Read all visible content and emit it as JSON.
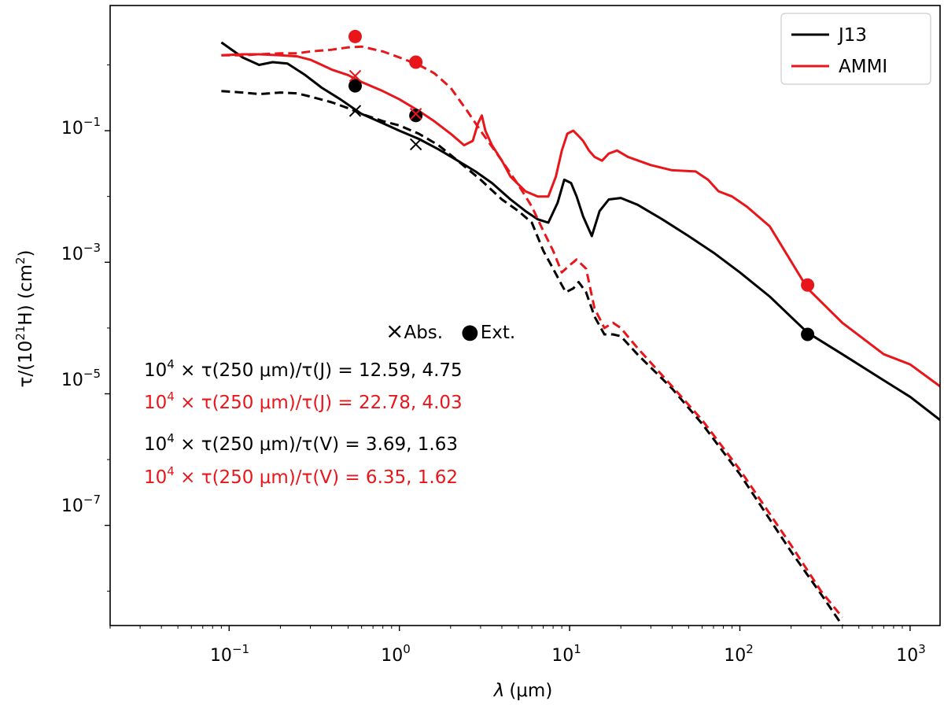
{
  "chart_data": {
    "type": "line",
    "xscale": "log",
    "yscale": "log",
    "xlim": [
      0.02,
      1500
    ],
    "ylim": [
      3e-09,
      8
    ],
    "xlabel": {
      "symbol": "λ",
      "unit": "(μm)"
    },
    "ylabel": {
      "prefix": "τ/(10",
      "exp": "21",
      "mid": "H) (cm",
      "exp2": "2",
      "suffix": ")"
    },
    "x_ticks": [
      {
        "value": 0.1,
        "base": "10",
        "exp": "−1"
      },
      {
        "value": 1,
        "base": "10",
        "exp": "0"
      },
      {
        "value": 10,
        "base": "10",
        "exp": "1"
      },
      {
        "value": 100,
        "base": "10",
        "exp": "2"
      },
      {
        "value": 1000,
        "base": "10",
        "exp": "3"
      }
    ],
    "y_ticks": [
      {
        "value": 0.1,
        "base": "10",
        "exp": "−1"
      },
      {
        "value": 0.001,
        "base": "10",
        "exp": "−3"
      },
      {
        "value": 1e-05,
        "base": "10",
        "exp": "−5"
      },
      {
        "value": 1e-07,
        "base": "10",
        "exp": "−7"
      }
    ],
    "colors": {
      "J13": "#000000",
      "AMMI": "#e8161b"
    },
    "legend": {
      "location": "upper right",
      "entries": [
        {
          "label": "J13",
          "color": "#000000"
        },
        {
          "label": "AMMI",
          "color": "#e8161b"
        }
      ]
    },
    "series": [
      {
        "name": "J13 extinction",
        "model": "J13",
        "style": "solid",
        "color": "#000000",
        "x": [
          0.09,
          0.12,
          0.15,
          0.18,
          0.22,
          0.28,
          0.35,
          0.45,
          0.6,
          0.8,
          1.0,
          1.3,
          1.7,
          2.2,
          2.8,
          3.5,
          4.5,
          5.5,
          6.5,
          7.5,
          8.5,
          9.3,
          10.2,
          11.0,
          12.0,
          13.5,
          15.0,
          17.0,
          20.0,
          25.0,
          35.0,
          50.0,
          70.0,
          100.0,
          150.0,
          250.0,
          400.0,
          700.0,
          1000.0,
          1500.0
        ],
        "y": [
          2.2,
          1.3,
          1.0,
          1.1,
          1.05,
          0.7,
          0.45,
          0.3,
          0.18,
          0.13,
          0.1,
          0.075,
          0.052,
          0.035,
          0.024,
          0.016,
          0.009,
          0.006,
          0.0045,
          0.004,
          0.008,
          0.018,
          0.016,
          0.01,
          0.005,
          0.0025,
          0.006,
          0.009,
          0.0095,
          0.0075,
          0.0045,
          0.0025,
          0.0014,
          0.0007,
          0.0003,
          8.5e-05,
          4e-05,
          1.6e-05,
          9e-06,
          4e-06
        ]
      },
      {
        "name": "AMMI extinction",
        "model": "AMMI",
        "style": "solid",
        "color": "#e8161b",
        "x": [
          0.09,
          0.12,
          0.15,
          0.2,
          0.25,
          0.3,
          0.35,
          0.4,
          0.5,
          0.6,
          0.8,
          1.0,
          1.3,
          1.6,
          2.0,
          2.4,
          2.7,
          2.9,
          3.05,
          3.2,
          3.5,
          4.0,
          4.5,
          5.5,
          6.5,
          7.5,
          8.3,
          9.0,
          9.7,
          10.5,
          11.2,
          12.0,
          13.0,
          14.0,
          15.5,
          17.0,
          19.0,
          22.0,
          30.0,
          40.0,
          55.0,
          65.0,
          75.0,
          90.0,
          110.0,
          150.0,
          250.0,
          400.0,
          700.0,
          1000.0,
          1500.0
        ],
        "y": [
          1.4,
          1.45,
          1.45,
          1.4,
          1.35,
          1.2,
          1.0,
          0.85,
          0.7,
          0.55,
          0.4,
          0.3,
          0.2,
          0.14,
          0.09,
          0.06,
          0.07,
          0.13,
          0.17,
          0.1,
          0.06,
          0.035,
          0.02,
          0.012,
          0.01,
          0.01,
          0.02,
          0.05,
          0.09,
          0.1,
          0.085,
          0.07,
          0.05,
          0.04,
          0.035,
          0.045,
          0.05,
          0.04,
          0.03,
          0.025,
          0.024,
          0.018,
          0.012,
          0.01,
          0.007,
          0.0035,
          0.0004,
          0.00012,
          4e-05,
          2.8e-05,
          1.3e-05
        ]
      },
      {
        "name": "J13 absorption",
        "model": "J13",
        "style": "dashed",
        "color": "#000000",
        "x": [
          0.09,
          0.12,
          0.15,
          0.2,
          0.25,
          0.3,
          0.4,
          0.5,
          0.6,
          0.8,
          1.0,
          1.3,
          1.7,
          2.2,
          3.0,
          4.0,
          5.0,
          6.0,
          7.0,
          8.0,
          9.0,
          9.5,
          10.5,
          11.3,
          12.5,
          14.0,
          16.0,
          18.0,
          20.0,
          25.0,
          40.0,
          60.0,
          100.0,
          200.0,
          300.0,
          400.0
        ],
        "y": [
          0.4,
          0.38,
          0.36,
          0.38,
          0.37,
          0.33,
          0.27,
          0.22,
          0.18,
          0.14,
          0.12,
          0.09,
          0.06,
          0.035,
          0.018,
          0.009,
          0.006,
          0.004,
          0.0015,
          0.0008,
          0.00045,
          0.00035,
          0.0004,
          0.0005,
          0.00035,
          0.00015,
          8e-05,
          8e-05,
          7.5e-05,
          4e-05,
          1.2e-05,
          3.5e-06,
          6e-07,
          4e-08,
          9e-09,
          3e-09
        ]
      },
      {
        "name": "AMMI absorption",
        "model": "AMMI",
        "style": "dashed",
        "color": "#e8161b",
        "x": [
          0.09,
          0.12,
          0.15,
          0.2,
          0.25,
          0.3,
          0.4,
          0.5,
          0.6,
          0.8,
          1.0,
          1.3,
          1.6,
          2.0,
          2.5,
          3.0,
          4.0,
          5.0,
          6.0,
          7.0,
          8.0,
          9.0,
          10.0,
          11.0,
          12.5,
          14.0,
          16.0,
          18.0,
          20.0,
          25.0,
          40.0,
          60.0,
          100.0,
          200.0,
          300.0,
          400.0
        ],
        "y": [
          1.4,
          1.4,
          1.45,
          1.5,
          1.5,
          1.6,
          1.7,
          1.85,
          1.9,
          1.6,
          1.3,
          1.0,
          0.75,
          0.45,
          0.2,
          0.1,
          0.035,
          0.015,
          0.007,
          0.003,
          0.0015,
          0.0007,
          0.0009,
          0.0011,
          0.0008,
          0.0002,
          0.0001,
          0.00012,
          0.0001,
          5e-05,
          1.3e-05,
          4e-06,
          7e-07,
          5e-08,
          1e-08,
          4e-09
        ]
      }
    ],
    "markers": [
      {
        "model": "J13",
        "kind": "Abs.",
        "shape": "x",
        "x": 0.55,
        "y": 0.2,
        "color": "#000000"
      },
      {
        "model": "J13",
        "kind": "Abs.",
        "shape": "x",
        "x": 1.25,
        "y": 0.062,
        "color": "#000000"
      },
      {
        "model": "J13",
        "kind": "Ext.",
        "shape": "circle",
        "x": 0.55,
        "y": 0.48,
        "color": "#000000"
      },
      {
        "model": "J13",
        "kind": "Ext.",
        "shape": "circle",
        "x": 1.25,
        "y": 0.17,
        "color": "#000000"
      },
      {
        "model": "J13",
        "kind": "Ext.",
        "shape": "circle",
        "x": 250,
        "y": 8e-05,
        "color": "#000000"
      },
      {
        "model": "AMMI",
        "kind": "Abs.",
        "shape": "x",
        "x": 0.55,
        "y": 0.68,
        "color": "#e8161b"
      },
      {
        "model": "AMMI",
        "kind": "Abs.",
        "shape": "x",
        "x": 1.25,
        "y": 0.18,
        "color": "#e8161b"
      },
      {
        "model": "AMMI",
        "kind": "Ext.",
        "shape": "circle",
        "x": 0.55,
        "y": 2.7,
        "color": "#e8161b"
      },
      {
        "model": "AMMI",
        "kind": "Ext.",
        "shape": "circle",
        "x": 1.25,
        "y": 1.1,
        "color": "#e8161b"
      },
      {
        "model": "AMMI",
        "kind": "Ext.",
        "shape": "circle",
        "x": 250,
        "y": 0.00045,
        "color": "#e8161b"
      }
    ],
    "marker_key": {
      "abs_symbol": "×",
      "abs_label": "Abs.",
      "ext_symbol": "●",
      "ext_label": "Ext."
    },
    "annotations": [
      {
        "color": "#000000",
        "base": "10",
        "exp": "4",
        "text": " × τ(250 μm)/τ(J) = 12.59,  4.75"
      },
      {
        "color": "#e8161b",
        "base": "10",
        "exp": "4",
        "text": " × τ(250 μm)/τ(J) = 22.78,  4.03"
      },
      {
        "color": "#000000",
        "base": "10",
        "exp": "4",
        "text": " × τ(250 μm)/τ(V) = 3.69,  1.63"
      },
      {
        "color": "#e8161b",
        "base": "10",
        "exp": "4",
        "text": " × τ(250 μm)/τ(V) = 6.35,  1.62"
      }
    ]
  }
}
